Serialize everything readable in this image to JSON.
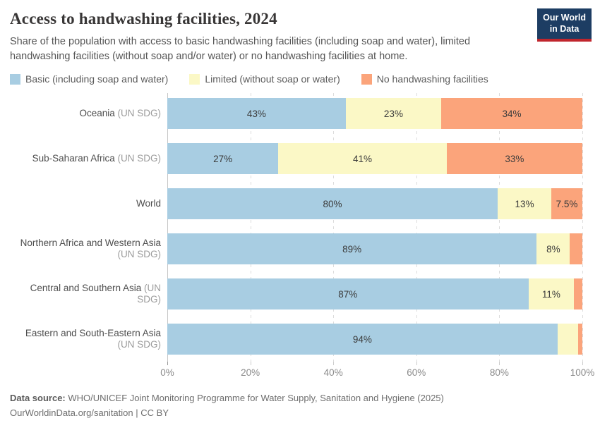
{
  "header": {
    "title": "Access to handwashing facilities, 2024",
    "subtitle": "Share of the population with access to basic handwashing facilities (including soap and water), limited handwashing facilities (without soap and/or water) or no handwashing facilities at home.",
    "logo": {
      "line1": "Our World",
      "line2": "in Data"
    }
  },
  "legend": [
    {
      "label": "Basic (including soap and water)",
      "color": "#a8cde2"
    },
    {
      "label": "Limited (without soap or water)",
      "color": "#fbf8c6"
    },
    {
      "label": "No handwashing facilities",
      "color": "#fba47b"
    }
  ],
  "chart_data": {
    "type": "bar",
    "orientation": "horizontal",
    "stacked": true,
    "unit": "%",
    "xlim": [
      0,
      100
    ],
    "x_tick_values": [
      0,
      20,
      40,
      60,
      80,
      100
    ],
    "x_tick_labels": [
      "0%",
      "20%",
      "40%",
      "60%",
      "80%",
      "100%"
    ],
    "grid": true,
    "legend_position": "top",
    "series_names": [
      "Basic (including soap and water)",
      "Limited (without soap or water)",
      "No handwashing facilities"
    ],
    "rows": [
      {
        "name": "Oceania",
        "qualifier": "(UN SDG)",
        "wrap": false,
        "values": [
          43,
          23,
          34
        ],
        "labels": [
          "43%",
          "23%",
          "34%"
        ]
      },
      {
        "name": "Sub-Saharan Africa",
        "qualifier": "(UN SDG)",
        "wrap": false,
        "values": [
          27,
          41,
          33
        ],
        "labels": [
          "27%",
          "41%",
          "33%"
        ]
      },
      {
        "name": "World",
        "qualifier": "",
        "wrap": false,
        "values": [
          80,
          13,
          7.5
        ],
        "labels": [
          "80%",
          "13%",
          "7.5%"
        ]
      },
      {
        "name": "Northern Africa and Western Asia",
        "qualifier": "(UN SDG)",
        "wrap": true,
        "values": [
          89,
          8,
          3
        ],
        "labels": [
          "89%",
          "8%",
          ""
        ]
      },
      {
        "name": "Central and Southern Asia",
        "qualifier": "(UN SDG)",
        "wrap": false,
        "values": [
          87,
          11,
          2
        ],
        "labels": [
          "87%",
          "11%",
          ""
        ]
      },
      {
        "name": "Eastern and South-Eastern Asia",
        "qualifier": "(UN SDG)",
        "wrap": true,
        "values": [
          94,
          5,
          1
        ],
        "labels": [
          "94%",
          "",
          ""
        ]
      }
    ]
  },
  "footer": {
    "data_source_label": "Data source:",
    "data_source": "WHO/UNICEF Joint Monitoring Programme for Water Supply, Sanitation and Hygiene (2025)",
    "link": "OurWorldinData.org/sanitation",
    "divider": "|",
    "license": "CC BY"
  },
  "colors": {
    "basic": "#a8cde2",
    "limited": "#fbf8c6",
    "none": "#fba47b",
    "grid": "#dcdcdc",
    "axis_line": "#c6c6c6",
    "logo_bg": "#1d3d63",
    "logo_accent": "#c0262d"
  }
}
